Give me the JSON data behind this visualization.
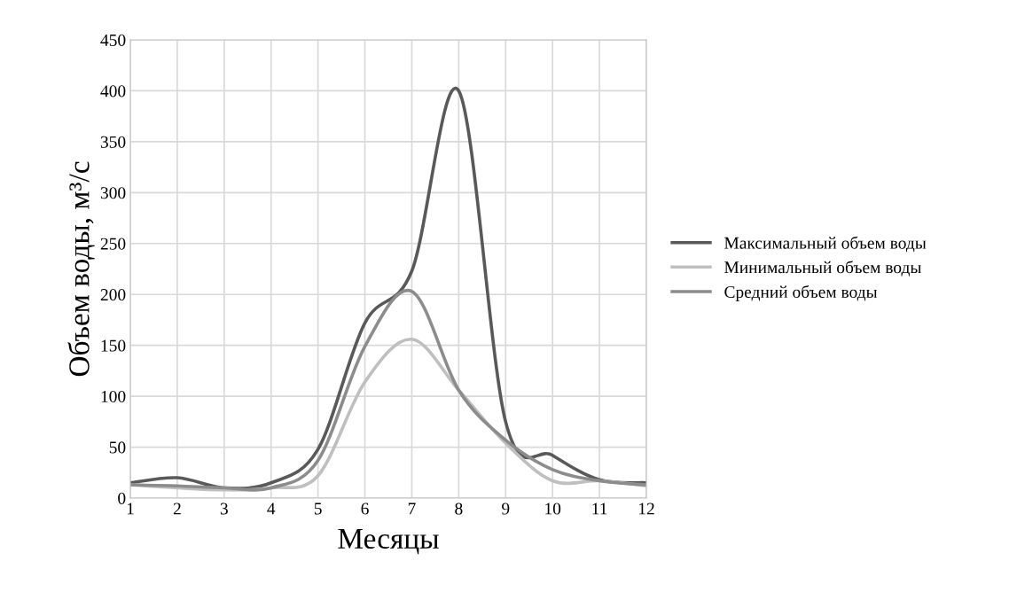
{
  "chart_data": {
    "type": "line",
    "xlabel": "Месяцы",
    "ylabel": "Объем воды, м³/с",
    "x": [
      1,
      2,
      3,
      4,
      5,
      6,
      7,
      8,
      9,
      10,
      11,
      12
    ],
    "xlim": [
      1,
      12
    ],
    "xticks": [
      1,
      2,
      3,
      4,
      5,
      6,
      7,
      8,
      9,
      10,
      11,
      12
    ],
    "ylim": [
      0,
      450
    ],
    "yticks": [
      0,
      50,
      100,
      150,
      200,
      250,
      300,
      350,
      400,
      450
    ],
    "grid": true,
    "legend": "right",
    "marker": "none",
    "line_style": "solid",
    "series": [
      {
        "name": "Максимальный объем воды",
        "color": "#595959",
        "values": [
          15,
          20,
          10,
          15,
          48,
          172,
          223,
          400,
          75,
          42,
          18,
          15
        ]
      },
      {
        "name": "Минимальный объем воды",
        "color": "#bfbfbf",
        "values": [
          13,
          10,
          8,
          10,
          22,
          114,
          156,
          106,
          54,
          17,
          17,
          12
        ]
      },
      {
        "name": "Средний объем воды",
        "color": "#8c8c8c",
        "values": [
          13,
          12,
          10,
          10,
          37,
          149,
          203,
          106,
          57,
          28,
          17,
          13
        ]
      }
    ]
  }
}
